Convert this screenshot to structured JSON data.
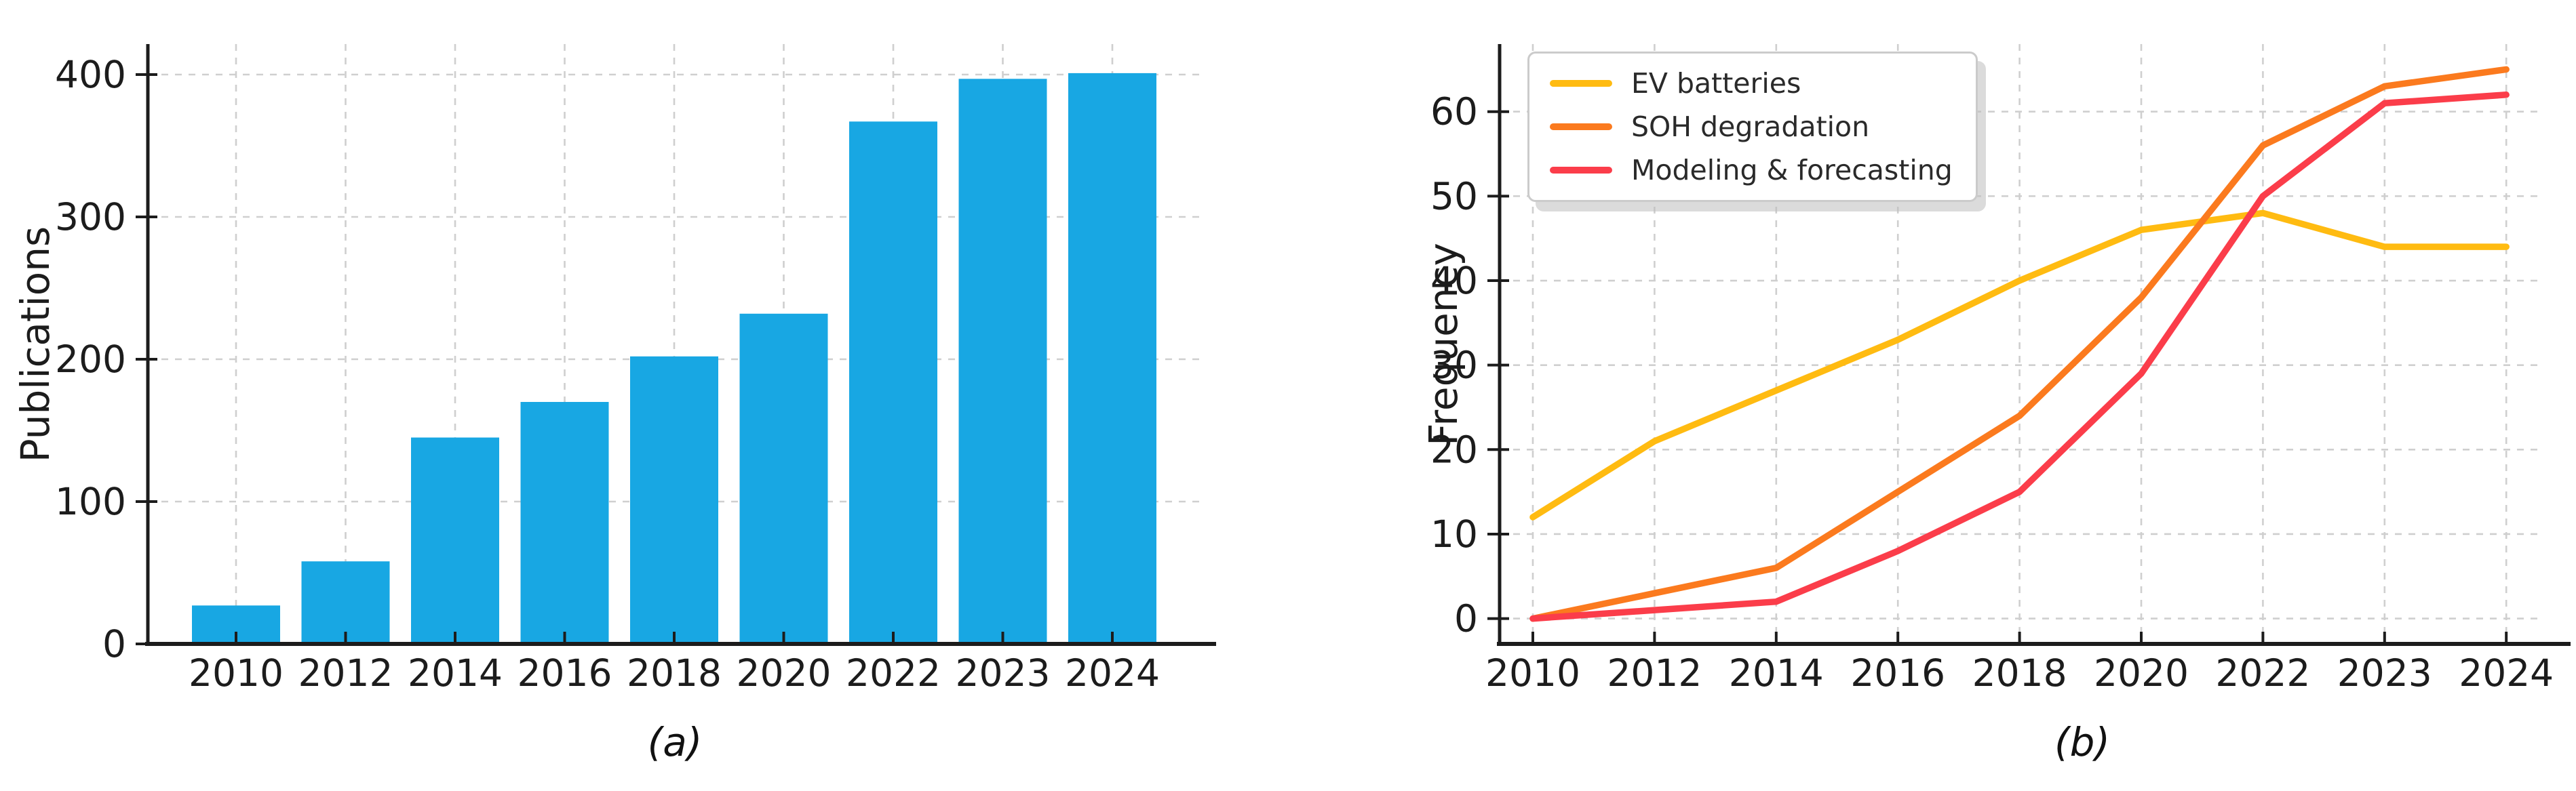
{
  "figure": {
    "background": "#ffffff"
  },
  "styles": {
    "grid_color": "#cfcfcf",
    "axis_color": "#1c1c1c",
    "text_color": "#1c1c1c",
    "legend_border_color": "#cbcbcb",
    "legend_shadow_color": "#bebebe"
  },
  "chart_data": [
    {
      "id": "publications-by-year",
      "type": "bar",
      "title": "",
      "categories": [
        "2010",
        "2012",
        "2014",
        "2016",
        "2018",
        "2020",
        "2022",
        "2023",
        "2024"
      ],
      "values": [
        27,
        58,
        145,
        170,
        202,
        232,
        367,
        397,
        401
      ],
      "xlabel": "",
      "ylabel": "Publications",
      "yticks": [
        0,
        100,
        200,
        300,
        400
      ],
      "ylim": [
        0,
        421
      ],
      "bar_color": "#18a7e3",
      "grid": true,
      "grid_style": "dashed",
      "caption": "(a)"
    },
    {
      "id": "keyword-frequency-by-year",
      "type": "line",
      "title": "",
      "categories": [
        "2010",
        "2012",
        "2014",
        "2016",
        "2018",
        "2020",
        "2022",
        "2023",
        "2024"
      ],
      "series": [
        {
          "name": "EV batteries",
          "color": "#ffbb11",
          "values": [
            12,
            21,
            27,
            33,
            40,
            46,
            48,
            44,
            44
          ]
        },
        {
          "name": "SOH degradation",
          "color": "#fb7a1e",
          "values": [
            0,
            3,
            6,
            15,
            24,
            38,
            56,
            63,
            65
          ]
        },
        {
          "name": "Modeling & forecasting",
          "color": "#fb3d4a",
          "values": [
            0,
            1,
            2,
            8,
            15,
            29,
            50,
            61,
            62
          ]
        }
      ],
      "xlabel": "",
      "ylabel": "Frequency",
      "yticks": [
        0,
        10,
        20,
        30,
        40,
        50,
        60
      ],
      "ylim": [
        -3,
        68
      ],
      "legend_position": "upper left",
      "grid": true,
      "grid_style": "dashed",
      "caption": "(b)"
    }
  ]
}
